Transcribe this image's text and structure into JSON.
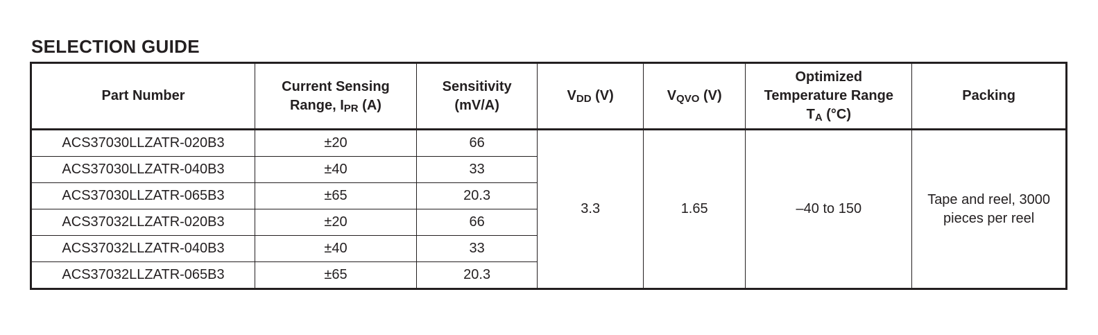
{
  "title": "SELECTION GUIDE",
  "table": {
    "headers": {
      "part_number": "Part Number",
      "range_line1": "Current Sensing",
      "range_line2_pre": "Range, I",
      "range_sub": "PR",
      "range_line2_post": " (A)",
      "sens_line1": "Sensitivity",
      "sens_line2": "(mV/A)",
      "vdd_pre": "V",
      "vdd_sub": "DD",
      "vdd_post": " (V)",
      "qvo_pre": "V",
      "qvo_sub": "QVO",
      "qvo_post": " (V)",
      "temp_line1": "Optimized",
      "temp_line2": "Temperature Range",
      "temp_line3_pre": "T",
      "temp_sub": "A",
      "temp_line3_post": " (°C)",
      "packing": "Packing"
    },
    "rows": [
      {
        "part": "ACS37030LLZATR-020B3",
        "range": "±20",
        "sensitivity": "66"
      },
      {
        "part": "ACS37030LLZATR-040B3",
        "range": "±40",
        "sensitivity": "33"
      },
      {
        "part": "ACS37030LLZATR-065B3",
        "range": "±65",
        "sensitivity": "20.3"
      },
      {
        "part": "ACS37032LLZATR-020B3",
        "range": "±20",
        "sensitivity": "66"
      },
      {
        "part": "ACS37032LLZATR-040B3",
        "range": "±40",
        "sensitivity": "33"
      },
      {
        "part": "ACS37032LLZATR-065B3",
        "range": "±65",
        "sensitivity": "20.3"
      }
    ],
    "shared": {
      "vdd": "3.3",
      "vqvo": "1.65",
      "temp_range": "–40 to 150",
      "packing_line1": "Tape and reel, 3000",
      "packing_line2": "pieces per reel"
    }
  }
}
